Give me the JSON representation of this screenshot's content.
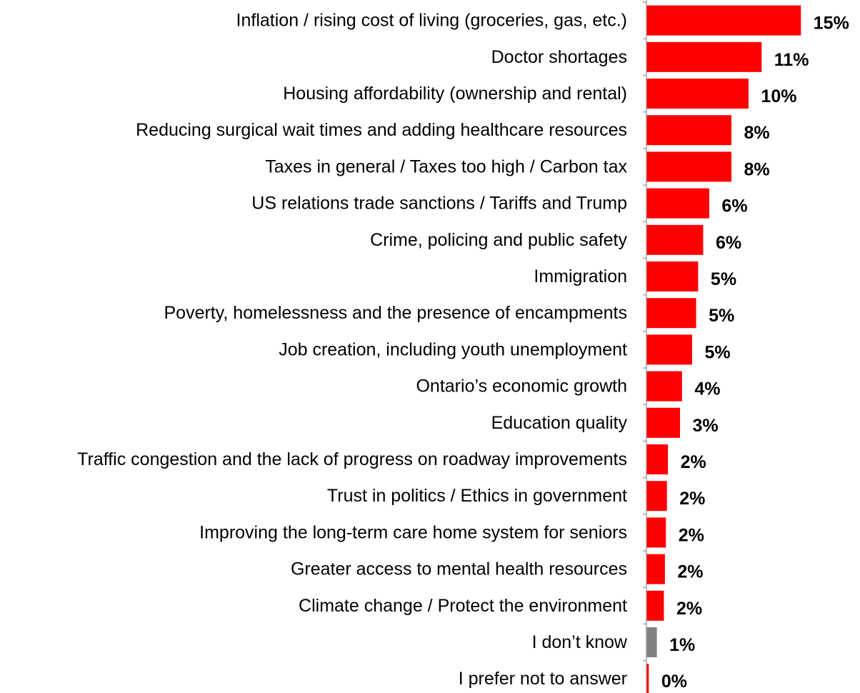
{
  "chart_data": {
    "type": "bar",
    "orientation": "horizontal",
    "categories": [
      "Inflation / rising cost of living (groceries, gas, etc.)",
      "Doctor shortages",
      "Housing affordability (ownership and rental)",
      "Reducing surgical wait times and adding healthcare resources",
      "Taxes in general / Taxes too high / Carbon tax",
      "US relations trade sanctions / Tariffs and Trump",
      "Crime, policing and public safety",
      "Immigration",
      "Poverty, homelessness and the presence of encampments",
      "Job creation, including youth unemployment",
      "Ontario’s economic growth",
      "Education quality",
      "Traffic congestion and the lack of progress on roadway improvements",
      "Trust in politics / Ethics in government",
      "Improving the long-term care home system for seniors",
      "Greater access to mental health resources",
      "Climate change / Protect the environment",
      "I don’t know",
      "I prefer not to answer"
    ],
    "values": [
      15.3,
      11.4,
      10.1,
      8.4,
      8.4,
      6.2,
      5.6,
      5.1,
      4.9,
      4.5,
      3.5,
      3.3,
      2.1,
      2.0,
      1.9,
      1.8,
      1.7,
      1.0,
      0.2
    ],
    "value_labels": [
      "15%",
      "11%",
      "10%",
      "8%",
      "8%",
      "6%",
      "6%",
      "5%",
      "5%",
      "5%",
      "4%",
      "3%",
      "2%",
      "2%",
      "2%",
      "2%",
      "2%",
      "1%",
      "0%"
    ],
    "bar_colors": [
      "#ff0000",
      "#ff0000",
      "#ff0000",
      "#ff0000",
      "#ff0000",
      "#ff0000",
      "#ff0000",
      "#ff0000",
      "#ff0000",
      "#ff0000",
      "#ff0000",
      "#ff0000",
      "#ff0000",
      "#ff0000",
      "#ff0000",
      "#ff0000",
      "#ff0000",
      "#808080",
      "#ff0000"
    ],
    "xlim": [
      0,
      15.6
    ],
    "axis_color": "#a6a6a6",
    "grid": false,
    "legend": "none"
  }
}
